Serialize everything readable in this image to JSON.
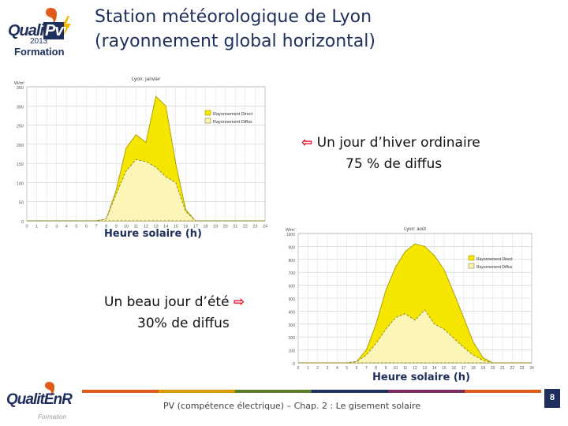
{
  "header": {
    "title_line1": "Station météorologique de Lyon",
    "title_line2": "(rayonnement global horizontal)"
  },
  "logo_top": {
    "brand_left": "Quali",
    "brand_right": "Pv",
    "year": "2013",
    "sub": "Formation"
  },
  "logo_bottom": {
    "brand": "QualitEnR",
    "sub": "Formation"
  },
  "callouts": {
    "winter_line1": "Un jour d’hiver ordinaire",
    "winter_line2": "75 % de diffus",
    "summer_line1": "Un beau jour d’été",
    "summer_line2": "30% de diffus",
    "axis_caption_winter": "Heure solaire (h)",
    "axis_caption_summer": "Heure solaire (h)"
  },
  "footer": {
    "text": "PV (compétence électrique) – Chap. 2 : Le gisement solaire",
    "page": "8"
  },
  "colors": {
    "navy": "#1e2f5e",
    "direct": "#f5e600",
    "diffuse": "#fbf5b8",
    "arrow": "#e8001c",
    "bar": [
      "#e05a1c",
      "#d89a00",
      "#5a7b2a",
      "#1e2f5e",
      "#7a2a5e",
      "#e05a1c"
    ]
  },
  "chart_data": [
    {
      "type": "area",
      "title": "Lyon: janvier",
      "ylabel": "W/m²",
      "x": [
        0,
        1,
        2,
        3,
        4,
        5,
        6,
        7,
        8,
        9,
        10,
        11,
        12,
        13,
        14,
        15,
        16,
        17,
        18,
        19,
        20,
        21,
        22,
        23,
        24
      ],
      "ylim": [
        0,
        350
      ],
      "yticks": [
        0,
        50,
        100,
        150,
        200,
        250,
        300,
        350
      ],
      "legend_position": "top-right",
      "series": [
        {
          "name": "Rayonnement Direct",
          "values": [
            0,
            0,
            0,
            0,
            0,
            0,
            0,
            0,
            5,
            80,
            190,
            225,
            205,
            325,
            300,
            150,
            30,
            0,
            0,
            0,
            0,
            0,
            0,
            0,
            0
          ]
        },
        {
          "name": "Rayonnement Diffus",
          "values": [
            0,
            0,
            0,
            0,
            0,
            0,
            0,
            0,
            5,
            70,
            130,
            160,
            155,
            140,
            115,
            100,
            25,
            0,
            0,
            0,
            0,
            0,
            0,
            0,
            0
          ]
        }
      ]
    },
    {
      "type": "area",
      "title": "Lyon: août",
      "ylabel": "W/m²",
      "x": [
        0,
        1,
        2,
        3,
        4,
        5,
        6,
        7,
        8,
        9,
        10,
        11,
        12,
        13,
        14,
        15,
        16,
        17,
        18,
        19,
        20,
        21,
        22,
        23,
        24
      ],
      "ylim": [
        0,
        1000
      ],
      "yticks": [
        0,
        100,
        200,
        300,
        400,
        500,
        600,
        700,
        800,
        900,
        1000
      ],
      "legend_position": "top-right",
      "series": [
        {
          "name": "Rayonnement Direct",
          "values": [
            0,
            0,
            0,
            0,
            0,
            0,
            10,
            100,
            300,
            560,
            740,
            860,
            920,
            900,
            830,
            720,
            540,
            350,
            160,
            40,
            0,
            0,
            0,
            0,
            0
          ]
        },
        {
          "name": "Rayonnement Diffus",
          "values": [
            0,
            0,
            0,
            0,
            0,
            0,
            10,
            60,
            150,
            260,
            350,
            380,
            330,
            410,
            300,
            260,
            190,
            120,
            60,
            20,
            0,
            0,
            0,
            0,
            0
          ]
        }
      ]
    }
  ]
}
